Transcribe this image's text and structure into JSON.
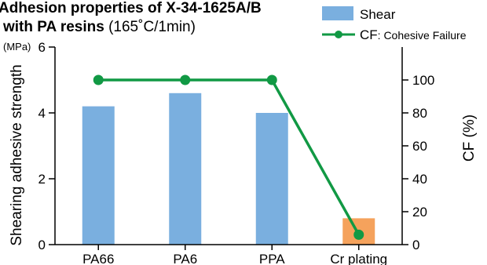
{
  "chart_data": {
    "type": "bar",
    "title": "Adhesion properties of  X-34-1625A/B",
    "subtitle_bold": "with PA resins",
    "subtitle_rest": " (165˚C/1min)",
    "categories": [
      "PA66",
      "PA6",
      "PPA",
      "Cr plating"
    ],
    "series": [
      {
        "name": "Shear",
        "type": "bar",
        "axis": "left",
        "values": [
          4.2,
          4.6,
          4.0,
          0.8
        ],
        "colors": [
          "#7aafdf",
          "#7aafdf",
          "#7aafdf",
          "#f5a25c"
        ]
      },
      {
        "name": "CF",
        "name_suffix": ": Cohesive Failure",
        "type": "line",
        "axis": "right",
        "values": [
          100,
          100,
          100,
          6
        ],
        "color": "#119944"
      }
    ],
    "ylabel": "Shearing adhesive strength",
    "ylabel_unit": "(MPa)",
    "y2label": "CF (%)",
    "ylim": [
      0,
      6
    ],
    "yticks": [
      0,
      2,
      4,
      6
    ],
    "ytick_labels": [
      "0",
      "2",
      "4",
      "6"
    ],
    "y2lim": [
      0,
      120
    ],
    "y2ticks": [
      0,
      20,
      40,
      60,
      80,
      100
    ],
    "y2tick_labels": [
      "0",
      "20",
      "40",
      "60",
      "80",
      "100"
    ],
    "legend_position": "top-right",
    "grid": false
  }
}
